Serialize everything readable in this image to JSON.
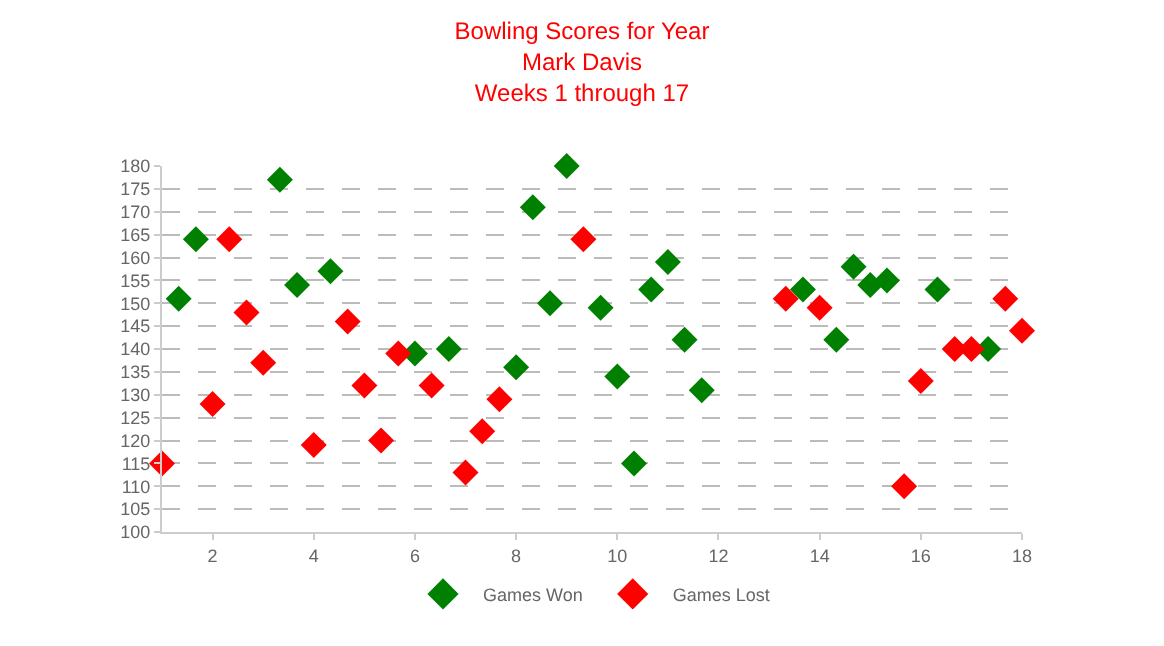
{
  "chart_data": {
    "type": "scatter",
    "title": "Bowling Scores for Year",
    "subtitle": "Mark Davis\nWeeks 1 through 17",
    "series": [
      {
        "name": "Games Won",
        "color": "#008000",
        "x": [
          1.33,
          1.67,
          3.33,
          3.67,
          4.33,
          6.0,
          6.67,
          8.0,
          8.33,
          8.67,
          9.0,
          9.67,
          10.0,
          10.33,
          10.67,
          11.0,
          11.33,
          11.67,
          13.67,
          14.33,
          14.67,
          15.0,
          15.33,
          16.33,
          17.33
        ],
        "values": [
          151,
          164,
          177,
          154,
          157,
          139,
          140,
          136,
          171,
          150,
          180,
          149,
          134,
          115,
          153,
          159,
          142,
          131,
          153,
          142,
          158,
          154,
          155,
          153,
          140
        ]
      },
      {
        "name": "Games Lost",
        "color": "#ff0000",
        "x": [
          1.0,
          2.0,
          2.33,
          2.67,
          3.0,
          4.0,
          4.67,
          5.0,
          5.33,
          5.67,
          6.33,
          7.0,
          7.33,
          7.67,
          9.33,
          13.33,
          14.0,
          15.67,
          16.0,
          16.67,
          17.0,
          17.67,
          18.0
        ],
        "values": [
          115,
          128,
          164,
          148,
          137,
          119,
          146,
          132,
          120,
          139,
          132,
          113,
          122,
          129,
          164,
          151,
          149,
          110,
          133,
          140,
          140,
          151,
          144
        ]
      }
    ],
    "xlim": [
      1,
      18
    ],
    "xticks": [
      2,
      4,
      6,
      8,
      10,
      12,
      14,
      16,
      18
    ],
    "ylim": [
      100,
      180
    ],
    "yticks": [
      100,
      105,
      110,
      115,
      120,
      125,
      130,
      135,
      140,
      145,
      150,
      155,
      160,
      165,
      170,
      175,
      180
    ],
    "grid": "y",
    "legend": "bottom",
    "marker": "diamond"
  }
}
